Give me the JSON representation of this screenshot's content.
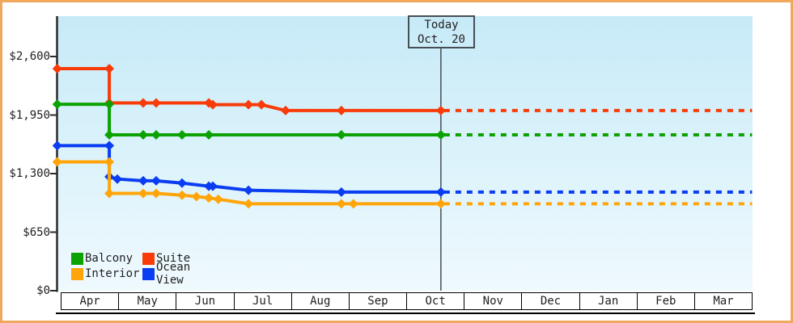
{
  "today_box": {
    "line1": "Today",
    "line2": "Oct. 20"
  },
  "y_axis": {
    "ticks": [
      {
        "label": "$2,600",
        "value": 2600
      },
      {
        "label": "$1,950",
        "value": 1950
      },
      {
        "label": "$1,300",
        "value": 1300
      },
      {
        "label": "$650",
        "value": 650
      },
      {
        "label": "$0",
        "value": 0
      }
    ]
  },
  "x_axis": {
    "months": [
      "Apr",
      "May",
      "Jun",
      "Jul",
      "Aug",
      "Sep",
      "Oct",
      "Nov",
      "Dec",
      "Jan",
      "Feb",
      "Mar"
    ]
  },
  "legend": {
    "items": [
      {
        "label": "Balcony",
        "color": "#0ca302"
      },
      {
        "label": "Suite",
        "color": "#f83b09"
      },
      {
        "label": "Interior",
        "color": "#ffa50a"
      },
      {
        "label": "Ocean View",
        "color": "#0a3df1"
      }
    ]
  },
  "chart_data": {
    "type": "line",
    "title": "",
    "xlabel": "",
    "ylabel": "",
    "ylim": [
      0,
      2925
    ],
    "x_unit": "months_since_apr_1",
    "today_marker": {
      "label": "Today",
      "date": "Oct. 20",
      "x_month": 6.61
    },
    "projection_end_month": 12.02,
    "series": [
      {
        "name": "Suite",
        "color": "#f83b09",
        "points": [
          [
            -0.06,
            2465
          ],
          [
            0.845,
            2465
          ],
          [
            0.845,
            2085
          ],
          [
            1.435,
            2085
          ],
          [
            1.66,
            2085
          ],
          [
            2.575,
            2085
          ],
          [
            2.645,
            2065
          ],
          [
            3.265,
            2065
          ],
          [
            3.49,
            2065
          ],
          [
            3.91,
            2000
          ],
          [
            4.88,
            2000
          ],
          [
            6.61,
            2000
          ]
        ],
        "projected_value": 2000
      },
      {
        "name": "Balcony",
        "color": "#0ca302",
        "points": [
          [
            -0.06,
            2070
          ],
          [
            0.845,
            2070
          ],
          [
            0.845,
            1730
          ],
          [
            1.435,
            1730
          ],
          [
            1.66,
            1730
          ],
          [
            2.11,
            1730
          ],
          [
            2.575,
            1730
          ],
          [
            4.88,
            1730
          ],
          [
            6.61,
            1730
          ]
        ],
        "projected_value": 1730
      },
      {
        "name": "Ocean View",
        "color": "#0a3df1",
        "points": [
          [
            -0.06,
            1610
          ],
          [
            0.845,
            1610
          ],
          [
            0.845,
            1265
          ],
          [
            0.985,
            1240
          ],
          [
            1.435,
            1220
          ],
          [
            1.66,
            1220
          ],
          [
            2.11,
            1195
          ],
          [
            2.575,
            1160
          ],
          [
            2.645,
            1160
          ],
          [
            3.265,
            1115
          ],
          [
            4.88,
            1095
          ],
          [
            6.61,
            1095
          ]
        ],
        "projected_value": 1095
      },
      {
        "name": "Interior",
        "color": "#ffa50a",
        "points": [
          [
            -0.06,
            1430
          ],
          [
            0.845,
            1430
          ],
          [
            0.845,
            1080
          ],
          [
            1.435,
            1080
          ],
          [
            1.66,
            1080
          ],
          [
            2.11,
            1060
          ],
          [
            2.36,
            1045
          ],
          [
            2.575,
            1030
          ],
          [
            2.74,
            1015
          ],
          [
            3.265,
            965
          ],
          [
            4.88,
            965
          ],
          [
            5.09,
            965
          ],
          [
            6.61,
            965
          ]
        ],
        "projected_value": 965
      }
    ]
  }
}
